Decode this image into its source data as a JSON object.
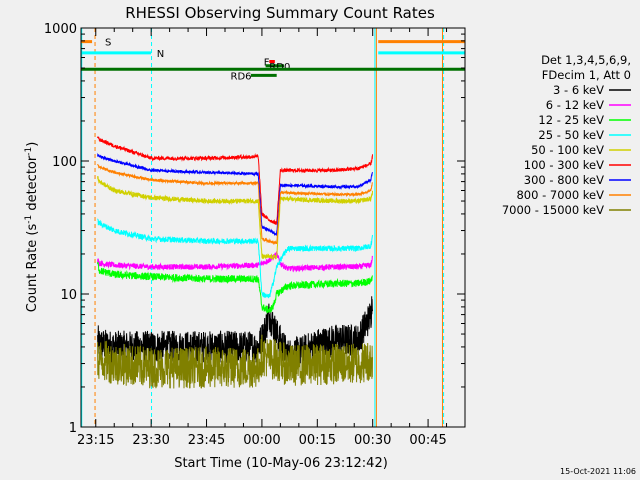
{
  "chart_data": {
    "type": "line",
    "title": "RHESSI Observing Summary Count Rates",
    "xlabel": "Start Time (10-May-06 23:12:42)",
    "ylabel_main": "Count Rate (s",
    "ylabel_sup1": "-1",
    "ylabel_mid": " detector",
    "ylabel_sup2": "-1",
    "ylabel_end": ")",
    "y_scale": "log",
    "ylim": [
      1,
      1000
    ],
    "xlim_minutes": [
      -4,
      100
    ],
    "x_ticks": [
      {
        "label": "23:15",
        "min": 0
      },
      {
        "label": "23:30",
        "min": 15
      },
      {
        "label": "23:45",
        "min": 30
      },
      {
        "label": "00:00",
        "min": 45
      },
      {
        "label": "00:15",
        "min": 60
      },
      {
        "label": "00:30",
        "min": 75
      },
      {
        "label": "00:45",
        "min": 90
      }
    ],
    "y_ticks": [
      {
        "label": "1",
        "value": 1
      },
      {
        "label": "10",
        "value": 10
      },
      {
        "label": "100",
        "value": 100
      },
      {
        "label": "1000",
        "value": 1000
      }
    ],
    "legend_header": [
      "Det 1,3,4,5,6,9,",
      "FDecim 1, Att 0"
    ],
    "legend_position": "right",
    "series": [
      {
        "name": "3 - 6 keV",
        "color": "#000000",
        "noise": 0.35,
        "min_value": 3,
        "points": [
          [
            0.5,
            4.5
          ],
          [
            1,
            4.2
          ],
          [
            5,
            4
          ],
          [
            15,
            4
          ],
          [
            30,
            4
          ],
          [
            44,
            4
          ],
          [
            45.5,
            5
          ],
          [
            47,
            7
          ],
          [
            49,
            5
          ],
          [
            52,
            3.5
          ],
          [
            56,
            3.7
          ],
          [
            60,
            4.2
          ],
          [
            65,
            4.5
          ],
          [
            71,
            4.5
          ],
          [
            74.5,
            7
          ],
          [
            75,
            10
          ]
        ]
      },
      {
        "name": "6 - 12 keV",
        "color": "#ff00ff",
        "noise": 0.06,
        "points": [
          [
            0.5,
            18
          ],
          [
            1,
            17
          ],
          [
            5,
            16.5
          ],
          [
            15,
            16
          ],
          [
            30,
            16
          ],
          [
            44,
            16.5
          ],
          [
            45,
            17
          ],
          [
            47,
            18
          ],
          [
            49,
            20
          ],
          [
            50,
            17
          ],
          [
            52,
            15.5
          ],
          [
            65,
            16
          ],
          [
            71,
            16
          ],
          [
            74.5,
            16.5
          ],
          [
            75,
            19
          ]
        ]
      },
      {
        "name": "12 - 25 keV",
        "color": "#00ff00",
        "noise": 0.08,
        "points": [
          [
            0.5,
            17
          ],
          [
            1,
            15
          ],
          [
            5,
            14
          ],
          [
            15,
            13.5
          ],
          [
            30,
            13
          ],
          [
            44,
            13
          ],
          [
            45,
            8
          ],
          [
            47,
            7.5
          ],
          [
            48,
            8
          ],
          [
            49,
            10
          ],
          [
            52,
            11.5
          ],
          [
            65,
            12
          ],
          [
            71,
            12
          ],
          [
            74.5,
            12.5
          ],
          [
            75,
            14
          ]
        ]
      },
      {
        "name": "25 - 50 keV",
        "color": "#00ffff",
        "noise": 0.06,
        "points": [
          [
            0.5,
            35
          ],
          [
            1,
            34
          ],
          [
            5,
            30
          ],
          [
            15,
            26
          ],
          [
            30,
            25
          ],
          [
            44,
            25
          ],
          [
            45,
            10
          ],
          [
            47,
            9.5
          ],
          [
            48,
            12
          ],
          [
            49,
            16
          ],
          [
            50,
            18
          ],
          [
            52,
            22
          ],
          [
            65,
            22
          ],
          [
            71,
            22
          ],
          [
            74.5,
            23
          ],
          [
            75,
            28
          ]
        ]
      },
      {
        "name": "50 - 100 keV",
        "color": "#d0d000",
        "noise": 0.05,
        "points": [
          [
            0.5,
            75
          ],
          [
            1,
            70
          ],
          [
            5,
            60
          ],
          [
            15,
            53
          ],
          [
            30,
            50
          ],
          [
            44,
            50
          ],
          [
            45,
            19
          ],
          [
            49,
            19
          ],
          [
            50,
            52
          ],
          [
            65,
            50
          ],
          [
            71,
            50
          ],
          [
            74.5,
            52
          ],
          [
            75,
            58
          ]
        ]
      },
      {
        "name": "100 - 300 keV",
        "color": "#ff0000",
        "noise": 0.04,
        "points": [
          [
            0.5,
            150
          ],
          [
            1,
            145
          ],
          [
            5,
            130
          ],
          [
            15,
            105
          ],
          [
            30,
            105
          ],
          [
            44,
            108
          ],
          [
            45,
            40
          ],
          [
            47,
            36
          ],
          [
            49,
            34
          ],
          [
            50,
            85
          ],
          [
            65,
            85
          ],
          [
            71,
            88
          ],
          [
            74.5,
            95
          ],
          [
            75,
            112
          ]
        ]
      },
      {
        "name": "300 - 800 keV",
        "color": "#0000ff",
        "noise": 0.03,
        "points": [
          [
            0.5,
            110
          ],
          [
            1,
            108
          ],
          [
            5,
            100
          ],
          [
            15,
            85
          ],
          [
            30,
            82
          ],
          [
            44,
            80
          ],
          [
            45,
            32
          ],
          [
            47,
            30
          ],
          [
            49,
            28
          ],
          [
            50,
            66
          ],
          [
            65,
            64
          ],
          [
            71,
            64
          ],
          [
            74.5,
            72
          ],
          [
            75,
            85
          ]
        ]
      },
      {
        "name": "800 - 7000 keV",
        "color": "#ff8000",
        "noise": 0.03,
        "points": [
          [
            0.5,
            95
          ],
          [
            1,
            90
          ],
          [
            5,
            82
          ],
          [
            15,
            72
          ],
          [
            30,
            68
          ],
          [
            44,
            68
          ],
          [
            45,
            26
          ],
          [
            47,
            25
          ],
          [
            49,
            24
          ],
          [
            50,
            58
          ],
          [
            65,
            56
          ],
          [
            71,
            56
          ],
          [
            74.5,
            60
          ],
          [
            75,
            70
          ]
        ]
      },
      {
        "name": "7000 - 15000 keV",
        "color": "#808000",
        "noise": 0.45,
        "min_value": 1.5,
        "points": [
          [
            0.5,
            3.2
          ],
          [
            1,
            3.2
          ],
          [
            5,
            3
          ],
          [
            15,
            2.8
          ],
          [
            30,
            2.8
          ],
          [
            44,
            2.8
          ],
          [
            45,
            3.5
          ],
          [
            47,
            3.3
          ],
          [
            49,
            3.2
          ],
          [
            52,
            2.9
          ],
          [
            65,
            3
          ],
          [
            71,
            3
          ],
          [
            75,
            3.2
          ]
        ]
      }
    ],
    "flag_bars": [
      {
        "label": "S",
        "color": "#ff8000",
        "start": -4,
        "end": -1,
        "y_value": 790,
        "label_at": 2.5
      },
      {
        "label": "S",
        "color": "#ff8000",
        "start": 76.5,
        "end": 100,
        "y_value": 790
      },
      {
        "label": "N",
        "color": "#00ffff",
        "start": -4,
        "end": 15,
        "y_value": 650,
        "label_at": 16.5
      },
      {
        "label": "N",
        "color": "#00ffff",
        "start": 76.5,
        "end": 100,
        "y_value": 650
      },
      {
        "label": "F",
        "color": "#ff0000",
        "start": 47,
        "end": 48.5,
        "y_value": 560,
        "label_at": 45.5
      },
      {
        "label": "RD0",
        "color": "#007000",
        "start": 46,
        "end": 51,
        "y_value": 520,
        "label_at": 47
      },
      {
        "label": "",
        "color": "#007000",
        "start": -4,
        "end": 100,
        "y_value": 490
      },
      {
        "label": "RD6",
        "color": "#007000",
        "start": 42,
        "end": 49,
        "y_value": 440,
        "label_at": 36.5
      }
    ],
    "vertical_markers": [
      {
        "min": -3.8,
        "color": "#00ffff",
        "style": "solid"
      },
      {
        "min": -0.2,
        "color": "#ff8000",
        "style": "dashed"
      },
      {
        "min": 15.1,
        "color": "#00ffff",
        "style": "dashed"
      },
      {
        "min": 75.6,
        "color": "#00ffff",
        "style": "solid"
      },
      {
        "min": 76.0,
        "color": "#ff8000",
        "style": "solid"
      },
      {
        "min": 93.9,
        "color": "#ff8000",
        "style": "solid"
      },
      {
        "min": 94.2,
        "color": "#00ffff",
        "style": "dashed"
      }
    ]
  },
  "footer": {
    "timestamp": "15-Oct-2021 11:06"
  }
}
